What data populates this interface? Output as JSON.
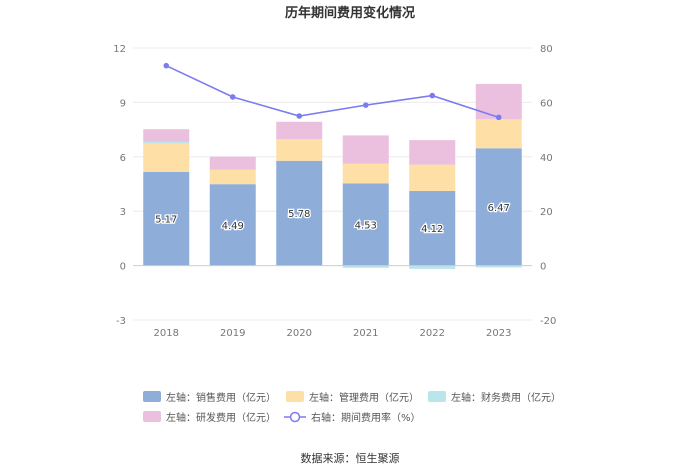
{
  "chart_data": {
    "type": "bar",
    "title": "历年期间费用变化情况",
    "source": "数据来源：恒生聚源",
    "categories": [
      "2018",
      "2019",
      "2020",
      "2021",
      "2022",
      "2023"
    ],
    "left_axis": {
      "ticks": [
        "12",
        "9",
        "6",
        "3",
        "0",
        "-3"
      ],
      "ylim": [
        -3,
        12
      ]
    },
    "right_axis": {
      "ticks": [
        "80",
        "60",
        "40",
        "20",
        "0",
        "-20"
      ],
      "ylim": [
        -20,
        80
      ]
    },
    "series": [
      {
        "name": "左轴：销售费用（亿元）",
        "color": "#8eadd9",
        "values": [
          5.17,
          4.49,
          5.78,
          4.53,
          4.12,
          6.47
        ],
        "labels": [
          "5.17",
          "4.49",
          "5.78",
          "4.53",
          "4.12",
          "6.47"
        ]
      },
      {
        "name": "左轴：管理费用（亿元）",
        "color": "#fedfa5",
        "values": [
          1.55,
          0.8,
          1.2,
          1.1,
          1.45,
          1.6
        ]
      },
      {
        "name": "左轴：财务费用（亿元）",
        "color": "#b8e6ea",
        "values": [
          0.1,
          0.0,
          0.0,
          -0.12,
          -0.18,
          -0.1
        ]
      },
      {
        "name": "左轴：研发费用（亿元）",
        "color": "#ebbfde",
        "values": [
          0.7,
          0.72,
          0.95,
          1.55,
          1.35,
          1.95
        ]
      }
    ],
    "line": {
      "name": "右轴：期间费用率（%）",
      "color": "#7b7cf0",
      "values": [
        73.5,
        62,
        55,
        59,
        62.5,
        54.5
      ]
    }
  }
}
